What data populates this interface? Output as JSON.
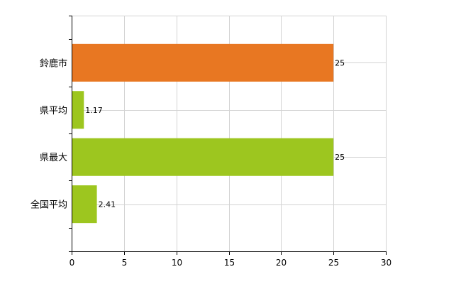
{
  "chart_data": {
    "type": "bar",
    "orientation": "horizontal",
    "categories": [
      "鈴鹿市",
      "県平均",
      "県最大",
      "全国平均"
    ],
    "values": [
      25,
      1.17,
      25,
      2.41
    ],
    "value_labels": [
      "25",
      "1.17",
      "25",
      "2.41"
    ],
    "bar_colors": [
      "#e87722",
      "#9dc61f",
      "#9dc61f",
      "#9dc61f"
    ],
    "xlim": [
      0,
      30
    ],
    "xticks": [
      0,
      5,
      10,
      15,
      20,
      25,
      30
    ],
    "xtick_labels": [
      "0",
      "5",
      "10",
      "15",
      "20",
      "25",
      "30"
    ],
    "grid": true,
    "title": "",
    "xlabel": "",
    "ylabel": ""
  }
}
